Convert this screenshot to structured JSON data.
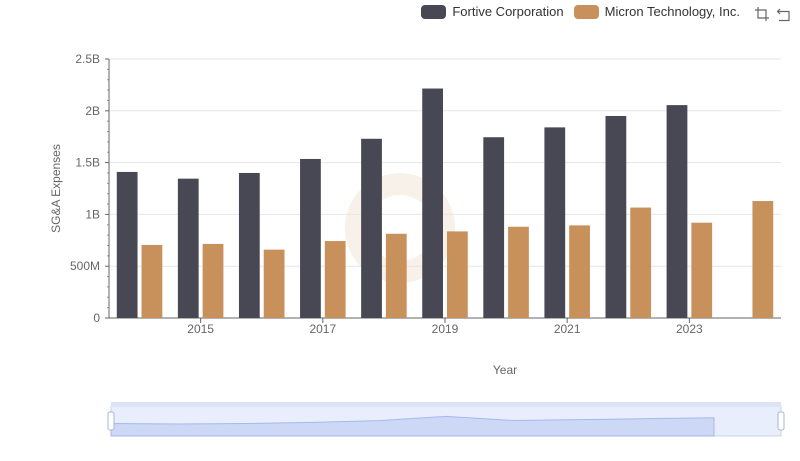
{
  "legend": {
    "items": [
      {
        "label": "Fortive Corporation",
        "color": "#484854"
      },
      {
        "label": "Micron Technology, Inc.",
        "color": "#c8915c"
      }
    ]
  },
  "toolbox": {
    "icons": [
      "zoom-icon",
      "restore-icon"
    ]
  },
  "chart_data": {
    "type": "bar",
    "xlabel": "Year",
    "ylabel": "SG&A Expenses",
    "categories": [
      "2014",
      "2015",
      "2016",
      "2017",
      "2018",
      "2019",
      "2020",
      "2021",
      "2022",
      "2023",
      "2024"
    ],
    "x_tick_labels": [
      "2015",
      "2017",
      "2019",
      "2021",
      "2023"
    ],
    "y_tick_labels": [
      "0",
      "500M",
      "1B",
      "1.5B",
      "2B",
      "2.5B"
    ],
    "ylim": [
      0,
      2500000000
    ],
    "grid": true,
    "legend_position": "top-right",
    "series": [
      {
        "name": "Fortive Corporation",
        "color": "#484854",
        "values": [
          1410000000,
          1345000000,
          1400000000,
          1535000000,
          1730000000,
          2215000000,
          1745000000,
          1840000000,
          1950000000,
          2055000000,
          null
        ]
      },
      {
        "name": "Micron Technology, Inc.",
        "color": "#c8915c",
        "values": [
          705000000,
          715000000,
          660000000,
          743000000,
          813000000,
          836000000,
          881000000,
          894000000,
          1066000000,
          920000000,
          1129000000
        ]
      }
    ]
  }
}
